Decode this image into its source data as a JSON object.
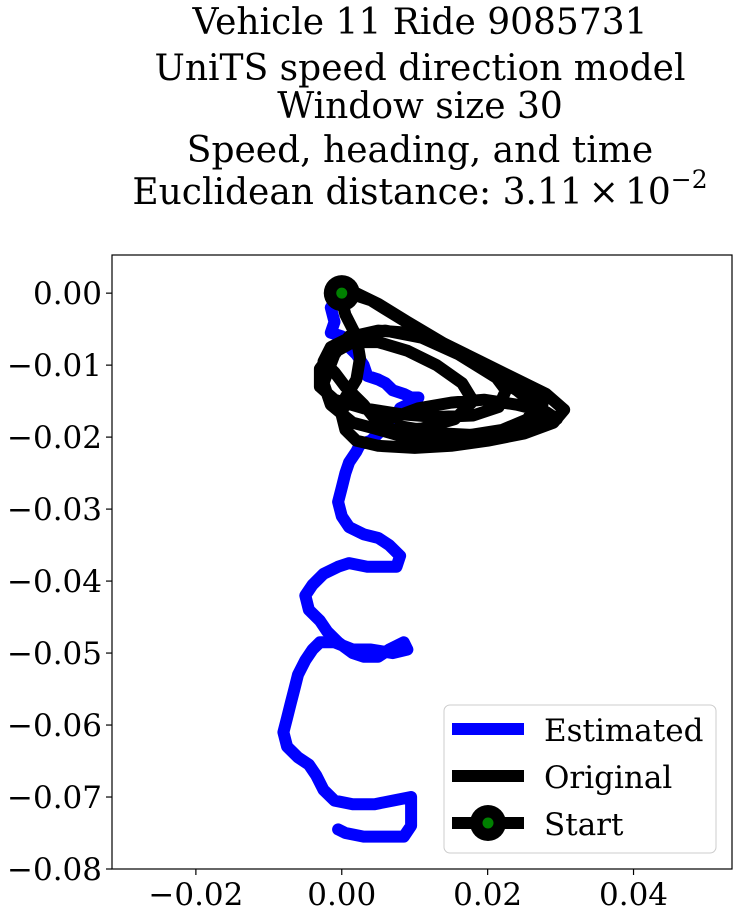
{
  "chart_data": {
    "type": "line",
    "title": {
      "lines": [
        "Vehicle 11 Ride 9085731",
        "UniTS speed direction model",
        "Window size 30",
        "Speed, heading, and time"
      ],
      "distance_prefix": "Euclidean distance: ",
      "distance_mantissa": "3.11",
      "distance_times": "×",
      "distance_base": "10",
      "distance_exponent": "−2"
    },
    "xlabel": "",
    "ylabel": "",
    "xlim": [
      -0.0315,
      0.0535
    ],
    "ylim": [
      -0.08,
      0.0053
    ],
    "xticks": [
      {
        "value": -0.02,
        "label": "−0.02"
      },
      {
        "value": 0.0,
        "label": "0.00"
      },
      {
        "value": 0.02,
        "label": "0.02"
      },
      {
        "value": 0.04,
        "label": "0.04"
      }
    ],
    "yticks": [
      {
        "value": 0.0,
        "label": "0.00"
      },
      {
        "value": -0.01,
        "label": "−0.01"
      },
      {
        "value": -0.02,
        "label": "−0.02"
      },
      {
        "value": -0.03,
        "label": "−0.03"
      },
      {
        "value": -0.04,
        "label": "−0.04"
      },
      {
        "value": -0.05,
        "label": "−0.05"
      },
      {
        "value": -0.06,
        "label": "−0.06"
      },
      {
        "value": -0.07,
        "label": "−0.07"
      },
      {
        "value": -0.08,
        "label": "−0.08"
      }
    ],
    "grid": false,
    "legend_position": "bottom-right",
    "legend": [
      {
        "label": "Estimated",
        "kind": "line",
        "color": "#0000ff"
      },
      {
        "label": "Original",
        "kind": "line",
        "color": "#000000"
      },
      {
        "label": "Start",
        "kind": "marker",
        "color": "#000000",
        "marker_color": "#008000"
      }
    ],
    "series": [
      {
        "name": "Estimated",
        "color": "#0000ff",
        "points": [
          [
            0.0,
            0.0
          ],
          [
            -0.0015,
            -0.002
          ],
          [
            -0.001,
            -0.004
          ],
          [
            -0.0015,
            -0.0055
          ],
          [
            0.0,
            -0.006
          ],
          [
            0.001,
            -0.0075
          ],
          [
            0.002,
            -0.0085
          ],
          [
            0.003,
            -0.01
          ],
          [
            0.0035,
            -0.0115
          ],
          [
            0.005,
            -0.012
          ],
          [
            0.006,
            -0.0125
          ],
          [
            0.007,
            -0.0135
          ],
          [
            0.0085,
            -0.014
          ],
          [
            0.0095,
            -0.0145
          ],
          [
            0.0105,
            -0.0145
          ],
          [
            0.009,
            -0.0155
          ],
          [
            0.008,
            -0.016
          ],
          [
            0.0075,
            -0.017
          ],
          [
            0.007,
            -0.018
          ],
          [
            0.006,
            -0.0185
          ],
          [
            0.005,
            -0.0195
          ],
          [
            0.004,
            -0.0205
          ],
          [
            0.0025,
            -0.021
          ],
          [
            0.002,
            -0.022
          ],
          [
            0.001,
            -0.0235
          ],
          [
            0.0005,
            -0.025
          ],
          [
            0.0,
            -0.027
          ],
          [
            -0.0005,
            -0.029
          ],
          [
            0.0,
            -0.031
          ],
          [
            0.001,
            -0.0325
          ],
          [
            0.003,
            -0.0335
          ],
          [
            0.005,
            -0.034
          ],
          [
            0.0065,
            -0.035
          ],
          [
            0.008,
            -0.0365
          ],
          [
            0.0075,
            -0.038
          ],
          [
            0.006,
            -0.038
          ],
          [
            0.0035,
            -0.038
          ],
          [
            0.001,
            -0.0375
          ],
          [
            -0.0005,
            -0.038
          ],
          [
            -0.0025,
            -0.039
          ],
          [
            -0.004,
            -0.0405
          ],
          [
            -0.005,
            -0.042
          ],
          [
            -0.0045,
            -0.044
          ],
          [
            -0.003,
            -0.0455
          ],
          [
            -0.002,
            -0.047
          ],
          [
            -0.0005,
            -0.0485
          ],
          [
            0.0015,
            -0.05
          ],
          [
            0.003,
            -0.0505
          ],
          [
            0.005,
            -0.0505
          ],
          [
            0.0065,
            -0.0495
          ],
          [
            0.0085,
            -0.0485
          ],
          [
            0.009,
            -0.0495
          ],
          [
            0.007,
            -0.05
          ],
          [
            0.004,
            -0.0495
          ],
          [
            0.0015,
            -0.0495
          ],
          [
            -0.001,
            -0.0485
          ],
          [
            -0.003,
            -0.0485
          ],
          [
            -0.004,
            -0.0495
          ],
          [
            -0.005,
            -0.051
          ],
          [
            -0.006,
            -0.053
          ],
          [
            -0.0065,
            -0.055
          ],
          [
            -0.007,
            -0.057
          ],
          [
            -0.0075,
            -0.059
          ],
          [
            -0.008,
            -0.061
          ],
          [
            -0.0075,
            -0.063
          ],
          [
            -0.006,
            -0.0645
          ],
          [
            -0.0045,
            -0.0655
          ],
          [
            -0.0035,
            -0.067
          ],
          [
            -0.0025,
            -0.069
          ],
          [
            -0.001,
            -0.0705
          ],
          [
            0.0015,
            -0.071
          ],
          [
            0.0045,
            -0.071
          ],
          [
            0.007,
            -0.0705
          ],
          [
            0.0095,
            -0.07
          ],
          [
            0.0095,
            -0.072
          ],
          [
            0.0095,
            -0.074
          ],
          [
            0.0085,
            -0.0755
          ],
          [
            0.006,
            -0.0755
          ],
          [
            0.003,
            -0.0755
          ],
          [
            0.0005,
            -0.075
          ],
          [
            -0.0005,
            -0.0745
          ]
        ]
      },
      {
        "name": "Original",
        "color": "#000000",
        "points": [
          [
            0.0,
            0.0
          ],
          [
            0.002,
            0.0
          ],
          [
            0.005,
            -0.0015
          ],
          [
            0.009,
            -0.004
          ],
          [
            0.014,
            -0.007
          ],
          [
            0.019,
            -0.0095
          ],
          [
            0.024,
            -0.012
          ],
          [
            0.028,
            -0.014
          ],
          [
            0.0305,
            -0.0162
          ],
          [
            0.029,
            -0.018
          ],
          [
            0.025,
            -0.0195
          ],
          [
            0.02,
            -0.0205
          ],
          [
            0.015,
            -0.0212
          ],
          [
            0.01,
            -0.0215
          ],
          [
            0.005,
            -0.0212
          ],
          [
            0.002,
            -0.0205
          ],
          [
            0.0005,
            -0.019
          ],
          [
            0.0,
            -0.017
          ],
          [
            0.0005,
            -0.0145
          ],
          [
            0.002,
            -0.012
          ],
          [
            0.0025,
            -0.009
          ],
          [
            0.002,
            -0.006
          ],
          [
            0.0005,
            -0.003
          ],
          [
            0.0,
            -0.001
          ],
          [
            0.001,
            0.0
          ],
          [
            0.004,
            -0.001
          ],
          [
            0.008,
            -0.0035
          ],
          [
            0.012,
            -0.006
          ],
          [
            0.016,
            -0.0085
          ],
          [
            0.02,
            -0.011
          ],
          [
            0.024,
            -0.0135
          ],
          [
            0.0265,
            -0.0155
          ],
          [
            0.0255,
            -0.0175
          ],
          [
            0.022,
            -0.019
          ],
          [
            0.017,
            -0.0198
          ],
          [
            0.012,
            -0.02
          ],
          [
            0.008,
            -0.0195
          ],
          [
            0.005,
            -0.018
          ],
          [
            0.003,
            -0.0155
          ],
          [
            0.0005,
            -0.013
          ],
          [
            -0.001,
            -0.011
          ],
          [
            -0.0025,
            -0.0095
          ],
          [
            -0.0015,
            -0.0075
          ],
          [
            0.0015,
            -0.006
          ],
          [
            0.005,
            -0.0052
          ],
          [
            0.009,
            -0.0055
          ],
          [
            0.013,
            -0.0065
          ],
          [
            0.017,
            -0.0085
          ],
          [
            0.0205,
            -0.0108
          ],
          [
            0.0225,
            -0.0135
          ],
          [
            0.0215,
            -0.0158
          ],
          [
            0.018,
            -0.017
          ],
          [
            0.013,
            -0.0172
          ],
          [
            0.008,
            -0.0168
          ],
          [
            0.003,
            -0.016
          ],
          [
            -0.001,
            -0.0148
          ],
          [
            -0.003,
            -0.013
          ],
          [
            -0.003,
            -0.0105
          ],
          [
            -0.0015,
            -0.0085
          ],
          [
            0.0015,
            -0.0068
          ],
          [
            0.005,
            -0.0068
          ],
          [
            0.009,
            -0.008
          ],
          [
            0.013,
            -0.01
          ],
          [
            0.0165,
            -0.0125
          ],
          [
            0.018,
            -0.015
          ],
          [
            0.0155,
            -0.0175
          ],
          [
            0.011,
            -0.0188
          ],
          [
            0.006,
            -0.0192
          ],
          [
            0.0015,
            -0.018
          ],
          [
            -0.0015,
            -0.0155
          ],
          [
            -0.0025,
            -0.0125
          ],
          [
            -0.001,
            -0.0085
          ],
          [
            0.001,
            -0.006
          ],
          [
            0.006,
            -0.0052
          ],
          [
            0.011,
            -0.0062
          ],
          [
            0.016,
            -0.0085
          ],
          [
            0.021,
            -0.011
          ],
          [
            0.025,
            -0.013
          ],
          [
            0.0275,
            -0.0155
          ],
          [
            0.0265,
            -0.0185
          ],
          [
            0.023,
            -0.0198
          ],
          [
            0.018,
            -0.0205
          ],
          [
            0.013,
            -0.0205
          ],
          [
            0.008,
            -0.0198
          ],
          [
            0.0045,
            -0.0188
          ],
          [
            0.0065,
            -0.0175
          ],
          [
            0.0105,
            -0.016
          ],
          [
            0.015,
            -0.0152
          ],
          [
            0.0195,
            -0.0148
          ],
          [
            0.024,
            -0.0155
          ],
          [
            0.028,
            -0.0165
          ],
          [
            0.0295,
            -0.0175
          ],
          [
            0.026,
            -0.019
          ],
          [
            0.02,
            -0.0198
          ],
          [
            0.014,
            -0.0195
          ],
          [
            0.008,
            -0.0185
          ]
        ]
      }
    ],
    "start": {
      "x": 0.0,
      "y": 0.0,
      "label": "Start"
    }
  }
}
